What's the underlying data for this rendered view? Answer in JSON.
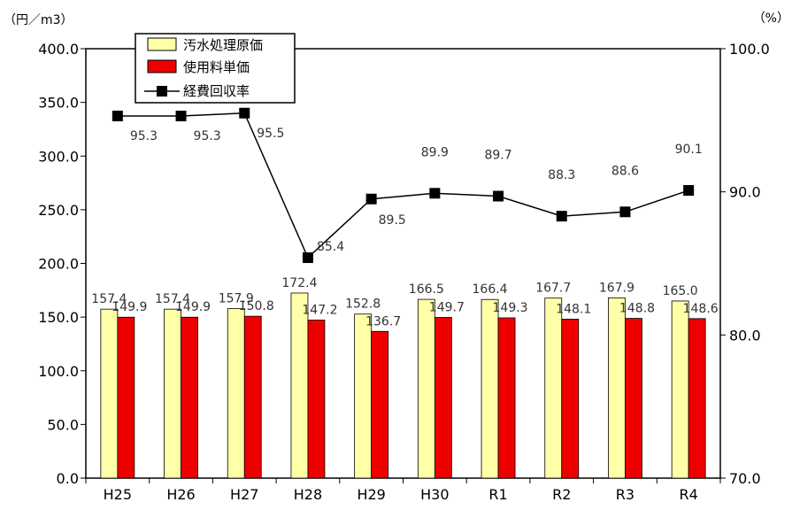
{
  "chart_data": {
    "type": "bar",
    "categories": [
      "H25",
      "H26",
      "H27",
      "H28",
      "H29",
      "H30",
      "R1",
      "R2",
      "R3",
      "R4"
    ],
    "series": [
      {
        "name": "汚水処理原価",
        "axis": "left",
        "kind": "bar",
        "color": "#FFFFA8",
        "values": [
          157.4,
          157.4,
          157.9,
          172.4,
          152.8,
          166.5,
          166.4,
          167.7,
          167.9,
          165.0
        ]
      },
      {
        "name": "使用料単価",
        "axis": "left",
        "kind": "bar",
        "color": "#EE0000",
        "values": [
          149.9,
          149.9,
          150.8,
          147.2,
          136.7,
          149.7,
          149.3,
          148.1,
          148.8,
          148.6
        ]
      },
      {
        "name": "経費回収率",
        "axis": "right",
        "kind": "line",
        "color": "#000000",
        "values": [
          95.3,
          95.3,
          95.5,
          85.4,
          89.5,
          89.9,
          89.7,
          88.3,
          88.6,
          90.1
        ]
      }
    ],
    "left_axis": {
      "unit_label": "（円／m3）",
      "ylim": [
        0,
        400
      ],
      "ticks": [
        "0.0",
        "50.0",
        "100.0",
        "150.0",
        "200.0",
        "250.0",
        "300.0",
        "350.0",
        "400.0"
      ]
    },
    "right_axis": {
      "unit_label": "（%）",
      "ylim": [
        70,
        100
      ],
      "ticks": [
        "70.0",
        "80.0",
        "90.0",
        "100.0"
      ]
    },
    "legend": {
      "placement": "top-left"
    },
    "grid": false
  }
}
